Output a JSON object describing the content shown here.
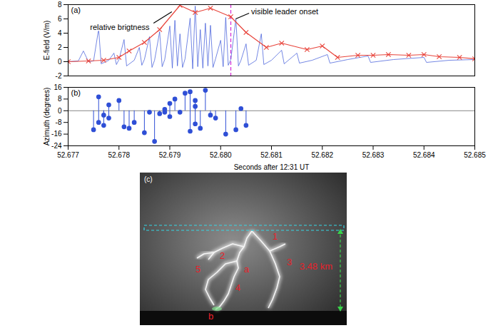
{
  "chart_data": [
    {
      "type": "line",
      "panel_label": "(a)",
      "ylabel": "E-field (V/m)",
      "xlim": [
        52.677,
        52.685
      ],
      "ylim": [
        -2,
        8
      ],
      "yticks": [
        -2,
        0,
        2,
        4,
        6,
        8
      ],
      "tick_labels": "y",
      "series": [
        {
          "color": "#3a55d8",
          "x": [
            52.677,
            52.6772,
            52.6773,
            52.6774,
            52.6775,
            52.6776,
            52.67765,
            52.6778,
            52.6779,
            52.67795,
            52.678,
            52.6781,
            52.67815,
            52.6783,
            52.6784,
            52.67845,
            52.6785,
            52.6786,
            52.67865,
            52.6787,
            52.6788,
            52.67885,
            52.6789,
            52.679,
            52.67905,
            52.6791,
            52.67915,
            52.6792,
            52.67925,
            52.6793,
            52.6794,
            52.67945,
            52.6795,
            52.67955,
            52.6796,
            52.67965,
            52.6797,
            52.67975,
            52.6798,
            52.67985,
            52.6799,
            52.68,
            52.68005,
            52.6801,
            52.68015,
            52.6802,
            52.6803,
            52.68035,
            52.6804,
            52.6805,
            52.68055,
            52.6807,
            52.6808,
            52.68085,
            52.681,
            52.6812,
            52.68125,
            52.6815,
            52.68155,
            52.6818,
            52.6821,
            52.68215,
            52.6825,
            52.6829,
            52.68295,
            52.6834,
            52.684,
            52.68405,
            52.6845,
            52.685
          ],
          "values": [
            0.0,
            0.1,
            1.5,
            0.0,
            0.1,
            4.6,
            -0.3,
            0.2,
            1.2,
            -0.4,
            0.3,
            3.1,
            -0.6,
            0.2,
            2.0,
            -0.5,
            0.3,
            3.5,
            -0.8,
            0.2,
            4.2,
            -0.7,
            0.3,
            5.0,
            -0.9,
            5.8,
            -0.6,
            3.9,
            -0.8,
            0.4,
            6.1,
            -1.0,
            7.8,
            -0.7,
            4.5,
            -0.9,
            5.4,
            -0.6,
            5.1,
            -0.8,
            0.4,
            3.0,
            -0.7,
            6.2,
            -0.5,
            0.3,
            6.0,
            -0.6,
            0.2,
            2.5,
            -0.5,
            0.2,
            3.9,
            -0.4,
            0.2,
            1.6,
            -0.3,
            1.2,
            -0.2,
            0.2,
            1.0,
            -0.2,
            0.3,
            0.8,
            -0.1,
            0.3,
            0.6,
            -0.1,
            0.2,
            0.3
          ]
        },
        {
          "name": "relative brigtness",
          "color": "#e8453c",
          "marker": "x",
          "x": [
            52.677,
            52.6774,
            52.6777,
            52.678,
            52.6782,
            52.6785,
            52.6788,
            52.6792,
            52.6795,
            52.6798,
            52.6802,
            52.6805,
            52.6809,
            52.6812,
            52.6817,
            52.682,
            52.6823,
            52.6827,
            52.683,
            52.6833,
            52.6837,
            52.684,
            52.6843,
            52.6847,
            52.685
          ],
          "values": [
            0,
            0.1,
            0.2,
            0.6,
            1.5,
            2.7,
            4.5,
            7.9,
            6.9,
            7.5,
            6.3,
            4.1,
            2.0,
            2.6,
            1.7,
            2.2,
            0.6,
            0.9,
            0.9,
            1.0,
            0.9,
            1.0,
            0.7,
            0.6,
            0.4
          ]
        }
      ],
      "annotations": [
        {
          "text": "visible leader onset",
          "x": 52.6802,
          "color": "#d633d6",
          "line_style": "dashed"
        }
      ]
    },
    {
      "type": "stem",
      "panel_label": "(b)",
      "xlabel": "Seconds after 12:31 UT",
      "ylabel": "Azimuth (degrees)",
      "xlim": [
        52.677,
        52.685
      ],
      "xticks": [
        52.677,
        52.678,
        52.679,
        {
          "value": 52.68,
          "label": "52.680"
        },
        52.681,
        52.682,
        52.683,
        52.684,
        52.685
      ],
      "ylim": [
        -24,
        16
      ],
      "yticks": [
        -24,
        -16,
        -8,
        0,
        8,
        16
      ],
      "color": "#2f4fd6",
      "marker": "circle",
      "x": [
        52.6775,
        52.6776,
        52.6776,
        52.6777,
        52.6777,
        52.6778,
        52.6778,
        52.678,
        52.6781,
        52.6782,
        52.6783,
        52.6785,
        52.6786,
        52.6787,
        52.6788,
        52.6789,
        52.6789,
        52.679,
        52.679,
        52.6791,
        52.6792,
        52.6793,
        52.6794,
        52.6794,
        52.6795,
        52.6795,
        52.6795,
        52.6796,
        52.6797,
        52.6798,
        52.6799,
        52.6801,
        52.6803,
        52.6804,
        52.6805
      ],
      "values": [
        -13,
        -8,
        9.5,
        -3,
        -10,
        4,
        -5,
        7,
        -11,
        -12,
        -8,
        -15,
        -1,
        -21,
        -2,
        -1,
        1,
        5,
        -4,
        8,
        -1,
        12,
        13,
        -14,
        3,
        -9,
        7,
        -12,
        14,
        -3,
        -5,
        -16,
        -13,
        1.5,
        -10
      ]
    }
  ],
  "photo": {
    "panel_label": "(c)",
    "labels": [
      "1",
      "2",
      "3",
      "4",
      "5",
      "a",
      "b"
    ],
    "height_label": "3.48 km"
  }
}
